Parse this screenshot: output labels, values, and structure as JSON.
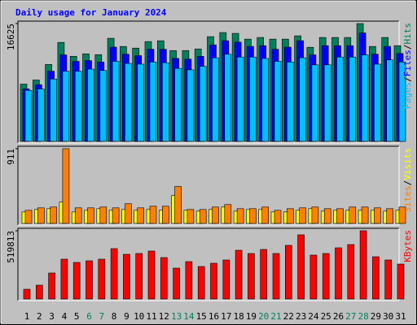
{
  "chart_data": [
    {
      "type": "bar",
      "title": "Daily usage for January 2024",
      "categories": [
        "1",
        "2",
        "3",
        "4",
        "5",
        "6",
        "7",
        "8",
        "9",
        "10",
        "11",
        "12",
        "13",
        "14",
        "15",
        "16",
        "17",
        "18",
        "19",
        "20",
        "21",
        "22",
        "23",
        "24",
        "25",
        "26",
        "27",
        "28",
        "29",
        "30",
        "31"
      ],
      "category_colors": [
        "#000000",
        "#000000",
        "#000000",
        "#000000",
        "#000000",
        "#00805c",
        "#00805c",
        "#000000",
        "#000000",
        "#000000",
        "#000000",
        "#000000",
        "#00805c",
        "#00805c",
        "#000000",
        "#000000",
        "#000000",
        "#000000",
        "#000000",
        "#00805c",
        "#00805c",
        "#000000",
        "#000000",
        "#000000",
        "#000000",
        "#000000",
        "#00805c",
        "#00805c",
        "#000000",
        "#000000",
        "#000000"
      ],
      "legend_separator": "/",
      "ylim": [
        0,
        16625
      ],
      "yticks": [
        16625
      ],
      "series": [
        {
          "name": "Hits",
          "color": "#00805c",
          "values": [
            8082,
            8659,
            10852,
            13969,
            12007,
            12353,
            12238,
            14547,
            13392,
            13161,
            14085,
            14200,
            12815,
            12815,
            13046,
            14778,
            15355,
            15239,
            14431,
            14662,
            14431,
            14431,
            14893,
            13277,
            14662,
            14662,
            14662,
            16625,
            13392,
            14662,
            13508
          ]
        },
        {
          "name": "Files",
          "color": "#0000ff",
          "values": [
            7400,
            8000,
            9900,
            12200,
            11300,
            11400,
            11200,
            13300,
            12300,
            12100,
            13000,
            13000,
            11700,
            11600,
            12000,
            13600,
            14200,
            14000,
            13400,
            13500,
            13000,
            13300,
            14200,
            12200,
            13500,
            13500,
            13500,
            15300,
            12300,
            13400,
            12400
          ]
        },
        {
          "name": "Pages",
          "color": "#00c0ff",
          "values": [
            7200,
            7400,
            8800,
            9900,
            9900,
            10200,
            10000,
            11300,
            11000,
            10900,
            11200,
            11100,
            10300,
            10100,
            10600,
            11800,
            12300,
            11900,
            11900,
            11700,
            11300,
            11200,
            11800,
            10800,
            10800,
            11900,
            11900,
            12200,
            10900,
            11500,
            11200
          ]
        }
      ]
    },
    {
      "type": "bar",
      "legend_separator": "/",
      "ylim": [
        0,
        911
      ],
      "yticks": [
        911
      ],
      "series": [
        {
          "name": "Visits",
          "color": "#ffff00",
          "values": [
            140,
            170,
            180,
            260,
            140,
            160,
            180,
            160,
            170,
            160,
            170,
            160,
            340,
            160,
            150,
            170,
            200,
            150,
            170,
            170,
            140,
            140,
            160,
            180,
            150,
            160,
            160,
            160,
            160,
            150,
            160
          ]
        },
        {
          "name": "Sites",
          "color": "#ff8000",
          "values": [
            160,
            190,
            200,
            911,
            190,
            190,
            200,
            190,
            240,
            190,
            210,
            210,
            450,
            170,
            170,
            200,
            230,
            180,
            180,
            200,
            160,
            180,
            190,
            200,
            180,
            180,
            200,
            200,
            190,
            180,
            200
          ]
        }
      ]
    },
    {
      "type": "bar",
      "ylim": [
        0,
        519813
      ],
      "yticks": [
        519813
      ],
      "series": [
        {
          "name": "KBytes",
          "color": "#ff0000",
          "values": [
            74256,
            105196,
            198016,
            303212,
            278460,
            290836,
            303212,
            383656,
            340340,
            346528,
            365092,
            315588,
            235144,
            284648,
            247520,
            272272,
            297024,
            371280,
            346528,
            377468,
            346528,
            408408,
            488852,
            334152,
            346528,
            389844,
            414596,
            519813,
            321776,
            297024,
            266084
          ]
        }
      ]
    }
  ]
}
